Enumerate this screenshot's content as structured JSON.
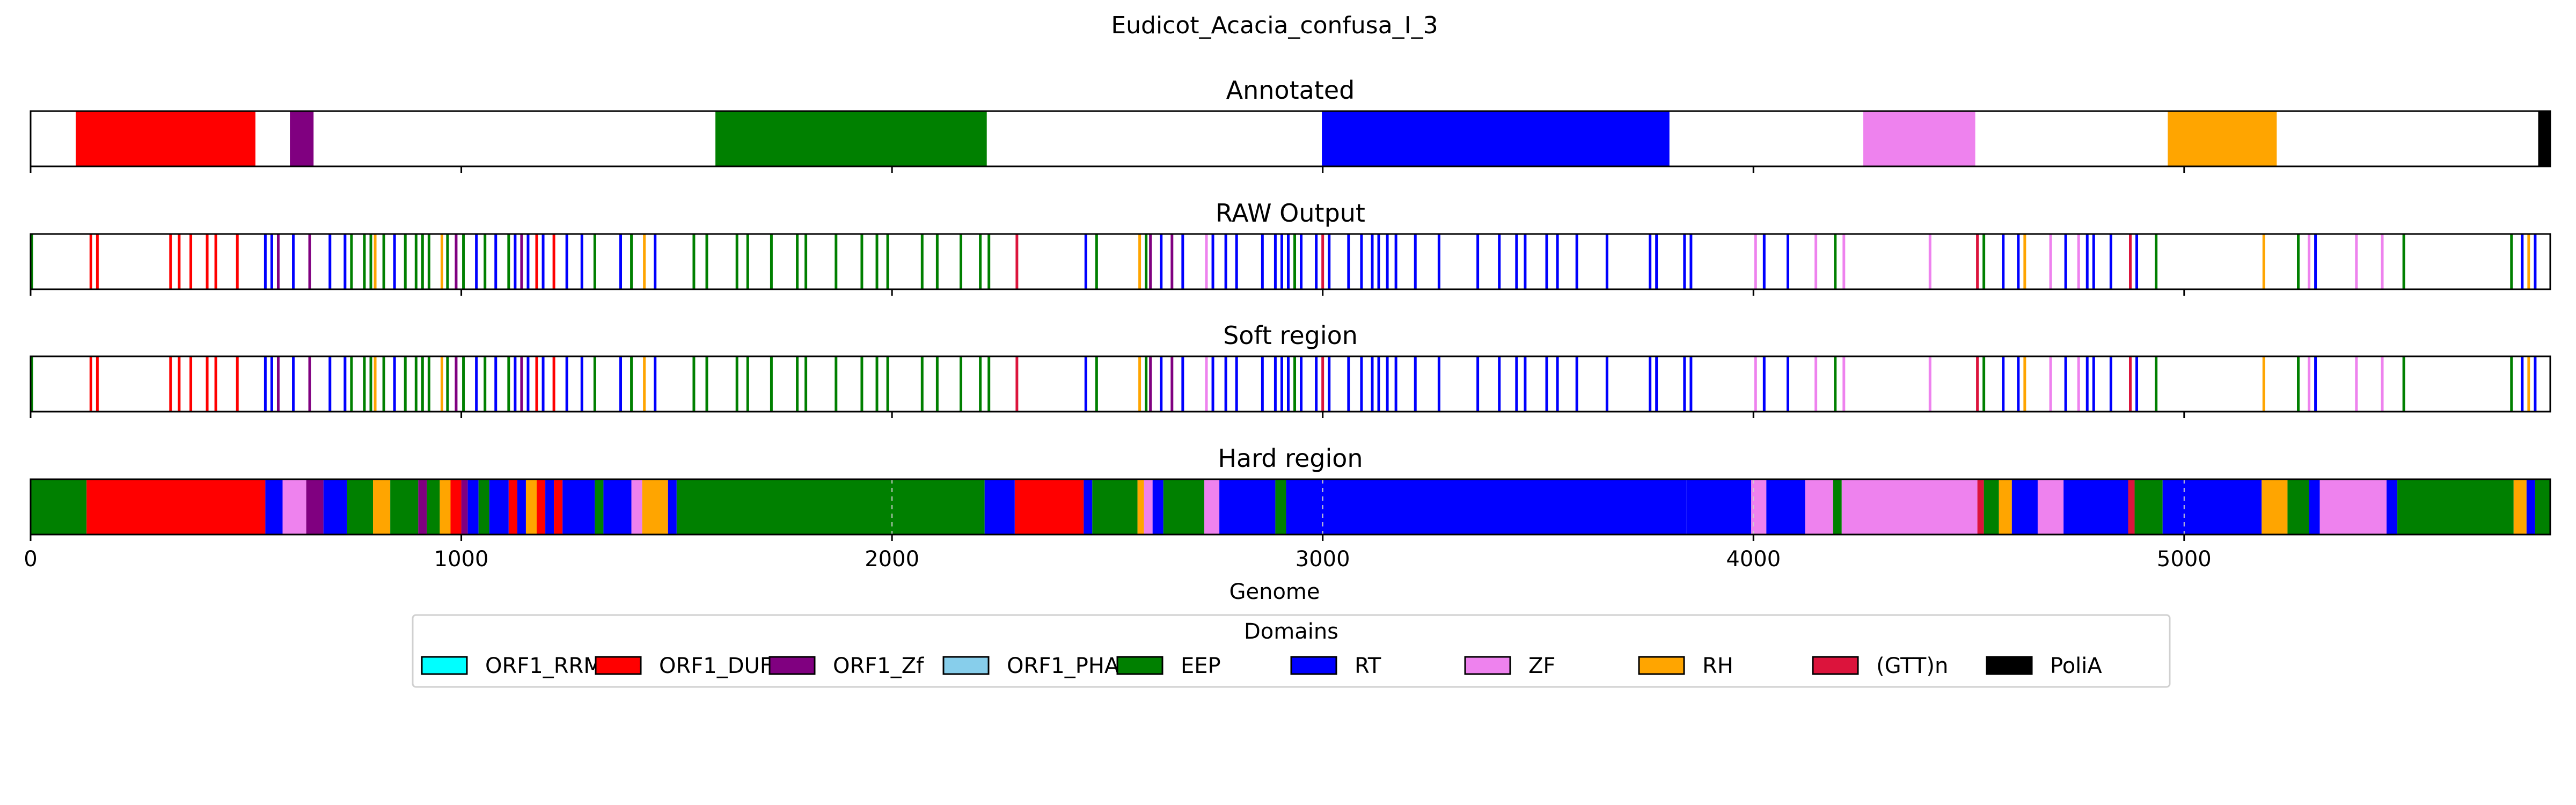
{
  "chart_data": {
    "type": "genome-track",
    "title": "Eudicot_Acacia_confusa_I_3",
    "xlabel": "Genome",
    "xlim": [
      0,
      5850
    ],
    "xticks": [
      0,
      1000,
      2000,
      3000,
      4000,
      5000
    ],
    "dashed_guides_hard_region": [
      2000,
      3000,
      4000,
      5000
    ],
    "legend": {
      "title": "Domains",
      "placement": "bottom-center",
      "entries": [
        {
          "name": "ORF1_RRM",
          "color": "#00ffff"
        },
        {
          "name": "ORF1_DUF",
          "color": "#ff0000"
        },
        {
          "name": "ORF1_Zf",
          "color": "#800080"
        },
        {
          "name": "ORF1_PHA",
          "color": "#87ceeb"
        },
        {
          "name": "EEP",
          "color": "#008000"
        },
        {
          "name": "RT",
          "color": "#0000ff"
        },
        {
          "name": "ZF",
          "color": "#ee82ee"
        },
        {
          "name": "RH",
          "color": "#ffa500"
        },
        {
          "name": "(GTT)n",
          "color": "#dc143c"
        },
        {
          "name": "PoliA",
          "color": "#000000"
        }
      ]
    },
    "panels": [
      {
        "title": "Annotated",
        "kind": "blocks",
        "segments": [
          {
            "domain": "ORF1_DUF",
            "start": 105,
            "end": 522
          },
          {
            "domain": "ORF1_Zf",
            "start": 602,
            "end": 657
          },
          {
            "domain": "EEP",
            "start": 1590,
            "end": 2220
          },
          {
            "domain": "RT",
            "start": 2998,
            "end": 3805
          },
          {
            "domain": "ZF",
            "start": 4255,
            "end": 4515
          },
          {
            "domain": "RH",
            "start": 4962,
            "end": 5215
          },
          {
            "domain": "PoliA",
            "start": 5822,
            "end": 5850
          }
        ]
      },
      {
        "title": "RAW Output",
        "kind": "lines",
        "marks": [
          {
            "domain": "EEP",
            "pos": 3
          },
          {
            "domain": "ORF1_DUF",
            "pos": 140
          },
          {
            "domain": "ORF1_DUF",
            "pos": 155
          },
          {
            "domain": "ORF1_DUF",
            "pos": 325
          },
          {
            "domain": "ORF1_DUF",
            "pos": 345
          },
          {
            "domain": "ORF1_DUF",
            "pos": 372
          },
          {
            "domain": "ORF1_DUF",
            "pos": 410
          },
          {
            "domain": "ORF1_DUF",
            "pos": 430
          },
          {
            "domain": "ORF1_DUF",
            "pos": 480
          },
          {
            "domain": "RT",
            "pos": 545
          },
          {
            "domain": "RT",
            "pos": 560
          },
          {
            "domain": "ORF1_Zf",
            "pos": 575
          },
          {
            "domain": "RT",
            "pos": 610
          },
          {
            "domain": "ORF1_Zf",
            "pos": 648
          },
          {
            "domain": "RT",
            "pos": 695
          },
          {
            "domain": "RT",
            "pos": 730
          },
          {
            "domain": "EEP",
            "pos": 745
          },
          {
            "domain": "EEP",
            "pos": 775
          },
          {
            "domain": "EEP",
            "pos": 790
          },
          {
            "domain": "RH",
            "pos": 800
          },
          {
            "domain": "EEP",
            "pos": 820
          },
          {
            "domain": "RT",
            "pos": 845
          },
          {
            "domain": "EEP",
            "pos": 870
          },
          {
            "domain": "EEP",
            "pos": 895
          },
          {
            "domain": "EEP",
            "pos": 910
          },
          {
            "domain": "EEP",
            "pos": 925
          },
          {
            "domain": "RH",
            "pos": 955
          },
          {
            "domain": "EEP",
            "pos": 968
          },
          {
            "domain": "ORF1_Zf",
            "pos": 988
          },
          {
            "domain": "EEP",
            "pos": 1005
          },
          {
            "domain": "RT",
            "pos": 1035
          },
          {
            "domain": "EEP",
            "pos": 1055
          },
          {
            "domain": "RT",
            "pos": 1080
          },
          {
            "domain": "EEP",
            "pos": 1110
          },
          {
            "domain": "RT",
            "pos": 1125
          },
          {
            "domain": "ORF1_Zf",
            "pos": 1140
          },
          {
            "domain": "RT",
            "pos": 1155
          },
          {
            "domain": "ORF1_DUF",
            "pos": 1175
          },
          {
            "domain": "RT",
            "pos": 1190
          },
          {
            "domain": "ORF1_DUF",
            "pos": 1215
          },
          {
            "domain": "RT",
            "pos": 1245
          },
          {
            "domain": "RT",
            "pos": 1280
          },
          {
            "domain": "EEP",
            "pos": 1310
          },
          {
            "domain": "RT",
            "pos": 1370
          },
          {
            "domain": "EEP",
            "pos": 1395
          },
          {
            "domain": "RH",
            "pos": 1425
          },
          {
            "domain": "RT",
            "pos": 1450
          },
          {
            "domain": "EEP",
            "pos": 1540
          },
          {
            "domain": "EEP",
            "pos": 1570
          },
          {
            "domain": "EEP",
            "pos": 1640
          },
          {
            "domain": "EEP",
            "pos": 1665
          },
          {
            "domain": "EEP",
            "pos": 1720
          },
          {
            "domain": "EEP",
            "pos": 1780
          },
          {
            "domain": "EEP",
            "pos": 1800
          },
          {
            "domain": "EEP",
            "pos": 1870
          },
          {
            "domain": "EEP",
            "pos": 1930
          },
          {
            "domain": "EEP",
            "pos": 1965
          },
          {
            "domain": "EEP",
            "pos": 1990
          },
          {
            "domain": "EEP",
            "pos": 2070
          },
          {
            "domain": "EEP",
            "pos": 2105
          },
          {
            "domain": "EEP",
            "pos": 2160
          },
          {
            "domain": "EEP",
            "pos": 2205
          },
          {
            "domain": "EEP",
            "pos": 2225
          },
          {
            "domain": "(GTT)n",
            "pos": 2290
          },
          {
            "domain": "RT",
            "pos": 2450
          },
          {
            "domain": "EEP",
            "pos": 2475
          },
          {
            "domain": "RH",
            "pos": 2575
          },
          {
            "domain": "EEP",
            "pos": 2590
          },
          {
            "domain": "ORF1_Zf",
            "pos": 2600
          },
          {
            "domain": "RT",
            "pos": 2625
          },
          {
            "domain": "ORF1_Zf",
            "pos": 2650
          },
          {
            "domain": "RT",
            "pos": 2675
          },
          {
            "domain": "ZF",
            "pos": 2730
          },
          {
            "domain": "RT",
            "pos": 2745
          },
          {
            "domain": "RT",
            "pos": 2775
          },
          {
            "domain": "RT",
            "pos": 2800
          },
          {
            "domain": "RT",
            "pos": 2860
          },
          {
            "domain": "RT",
            "pos": 2890
          },
          {
            "domain": "RT",
            "pos": 2905
          },
          {
            "domain": "RT",
            "pos": 2920
          },
          {
            "domain": "EEP",
            "pos": 2935
          },
          {
            "domain": "RT",
            "pos": 2950
          },
          {
            "domain": "RT",
            "pos": 2985
          },
          {
            "domain": "(GTT)n",
            "pos": 3000
          },
          {
            "domain": "RT",
            "pos": 3015
          },
          {
            "domain": "RT",
            "pos": 3060
          },
          {
            "domain": "RT",
            "pos": 3090
          },
          {
            "domain": "RT",
            "pos": 3115
          },
          {
            "domain": "RT",
            "pos": 3130
          },
          {
            "domain": "RT",
            "pos": 3150
          },
          {
            "domain": "RT",
            "pos": 3170
          },
          {
            "domain": "RT",
            "pos": 3215
          },
          {
            "domain": "RT",
            "pos": 3270
          },
          {
            "domain": "RT",
            "pos": 3360
          },
          {
            "domain": "RT",
            "pos": 3410
          },
          {
            "domain": "RT",
            "pos": 3450
          },
          {
            "domain": "RT",
            "pos": 3470
          },
          {
            "domain": "RT",
            "pos": 3520
          },
          {
            "domain": "RT",
            "pos": 3545
          },
          {
            "domain": "RT",
            "pos": 3590
          },
          {
            "domain": "RT",
            "pos": 3660
          },
          {
            "domain": "RT",
            "pos": 3760
          },
          {
            "domain": "RT",
            "pos": 3775
          },
          {
            "domain": "RT",
            "pos": 3840
          },
          {
            "domain": "RT",
            "pos": 3855
          },
          {
            "domain": "ZF",
            "pos": 4005
          },
          {
            "domain": "RT",
            "pos": 4025
          },
          {
            "domain": "RT",
            "pos": 4080
          },
          {
            "domain": "ZF",
            "pos": 4145
          },
          {
            "domain": "EEP",
            "pos": 4190
          },
          {
            "domain": "ZF",
            "pos": 4210
          },
          {
            "domain": "ZF",
            "pos": 4410
          },
          {
            "domain": "(GTT)n",
            "pos": 4520
          },
          {
            "domain": "EEP",
            "pos": 4535
          },
          {
            "domain": "RT",
            "pos": 4580
          },
          {
            "domain": "RT",
            "pos": 4615
          },
          {
            "domain": "RH",
            "pos": 4630
          },
          {
            "domain": "ZF",
            "pos": 4690
          },
          {
            "domain": "RT",
            "pos": 4725
          },
          {
            "domain": "ZF",
            "pos": 4755
          },
          {
            "domain": "RT",
            "pos": 4775
          },
          {
            "domain": "RT",
            "pos": 4790
          },
          {
            "domain": "RT",
            "pos": 4830
          },
          {
            "domain": "(GTT)n",
            "pos": 4875
          },
          {
            "domain": "RT",
            "pos": 4890
          },
          {
            "domain": "EEP",
            "pos": 4935
          },
          {
            "domain": "RH",
            "pos": 5185
          },
          {
            "domain": "EEP",
            "pos": 5265
          },
          {
            "domain": "ZF",
            "pos": 5290
          },
          {
            "domain": "RT",
            "pos": 5305
          },
          {
            "domain": "ZF",
            "pos": 5400
          },
          {
            "domain": "ZF",
            "pos": 5460
          },
          {
            "domain": "EEP",
            "pos": 5510
          },
          {
            "domain": "EEP",
            "pos": 5760
          },
          {
            "domain": "RT",
            "pos": 5785
          },
          {
            "domain": "RH",
            "pos": 5800
          },
          {
            "domain": "RT",
            "pos": 5815
          }
        ]
      },
      {
        "title": "Soft region",
        "kind": "lines",
        "same_marks_as": "RAW Output"
      },
      {
        "title": "Hard region",
        "kind": "blocks",
        "segments": [
          {
            "domain": "EEP",
            "start": 0,
            "end": 130
          },
          {
            "domain": "ORF1_DUF",
            "start": 130,
            "end": 545
          },
          {
            "domain": "RT",
            "start": 545,
            "end": 585
          },
          {
            "domain": "ZF",
            "start": 585,
            "end": 640
          },
          {
            "domain": "ORF1_Zf",
            "start": 640,
            "end": 680
          },
          {
            "domain": "RT",
            "start": 680,
            "end": 735
          },
          {
            "domain": "EEP",
            "start": 735,
            "end": 795
          },
          {
            "domain": "RH",
            "start": 795,
            "end": 835
          },
          {
            "domain": "EEP",
            "start": 835,
            "end": 900
          },
          {
            "domain": "ORF1_Zf",
            "start": 900,
            "end": 920
          },
          {
            "domain": "EEP",
            "start": 920,
            "end": 950
          },
          {
            "domain": "RH",
            "start": 950,
            "end": 975
          },
          {
            "domain": "ORF1_DUF",
            "start": 975,
            "end": 1000
          },
          {
            "domain": "ORF1_Zf",
            "start": 1000,
            "end": 1015
          },
          {
            "domain": "RT",
            "start": 1015,
            "end": 1040
          },
          {
            "domain": "EEP",
            "start": 1040,
            "end": 1065
          },
          {
            "domain": "RT",
            "start": 1065,
            "end": 1110
          },
          {
            "domain": "ORF1_DUF",
            "start": 1110,
            "end": 1130
          },
          {
            "domain": "RT",
            "start": 1130,
            "end": 1150
          },
          {
            "domain": "RH",
            "start": 1150,
            "end": 1175
          },
          {
            "domain": "ORF1_DUF",
            "start": 1175,
            "end": 1195
          },
          {
            "domain": "RT",
            "start": 1195,
            "end": 1215
          },
          {
            "domain": "ORF1_DUF",
            "start": 1215,
            "end": 1235
          },
          {
            "domain": "RT",
            "start": 1235,
            "end": 1310
          },
          {
            "domain": "EEP",
            "start": 1310,
            "end": 1330
          },
          {
            "domain": "RT",
            "start": 1330,
            "end": 1395
          },
          {
            "domain": "ZF",
            "start": 1395,
            "end": 1420
          },
          {
            "domain": "RH",
            "start": 1420,
            "end": 1480
          },
          {
            "domain": "RT",
            "start": 1480,
            "end": 1500
          },
          {
            "domain": "EEP",
            "start": 1500,
            "end": 2215
          },
          {
            "domain": "RT",
            "start": 2215,
            "end": 2285
          },
          {
            "domain": "ORF1_DUF",
            "start": 2285,
            "end": 2445
          },
          {
            "domain": "RT",
            "start": 2445,
            "end": 2465
          },
          {
            "domain": "EEP",
            "start": 2465,
            "end": 2570
          },
          {
            "domain": "RH",
            "start": 2570,
            "end": 2585
          },
          {
            "domain": "ZF",
            "start": 2585,
            "end": 2605
          },
          {
            "domain": "RT",
            "start": 2605,
            "end": 2630
          },
          {
            "domain": "EEP",
            "start": 2630,
            "end": 2725
          },
          {
            "domain": "ZF",
            "start": 2725,
            "end": 2760
          },
          {
            "domain": "RT",
            "start": 2760,
            "end": 2890
          },
          {
            "domain": "EEP",
            "start": 2890,
            "end": 2915
          },
          {
            "domain": "RT",
            "start": 2915,
            "end": 3845
          },
          {
            "domain": "RT",
            "start": 3845,
            "end": 3995
          },
          {
            "domain": "ZF",
            "start": 3995,
            "end": 4030
          },
          {
            "domain": "RT",
            "start": 4030,
            "end": 4120
          },
          {
            "domain": "ZF",
            "start": 4120,
            "end": 4185
          },
          {
            "domain": "EEP",
            "start": 4185,
            "end": 4205
          },
          {
            "domain": "ZF",
            "start": 4205,
            "end": 4520
          },
          {
            "domain": "(GTT)n",
            "start": 4520,
            "end": 4535
          },
          {
            "domain": "EEP",
            "start": 4535,
            "end": 4570
          },
          {
            "domain": "RH",
            "start": 4570,
            "end": 4600
          },
          {
            "domain": "RT",
            "start": 4600,
            "end": 4660
          },
          {
            "domain": "ZF",
            "start": 4660,
            "end": 4720
          },
          {
            "domain": "RT",
            "start": 4720,
            "end": 4870
          },
          {
            "domain": "(GTT)n",
            "start": 4870,
            "end": 4885
          },
          {
            "domain": "EEP",
            "start": 4885,
            "end": 4950
          },
          {
            "domain": "RT",
            "start": 4950,
            "end": 5180
          },
          {
            "domain": "RH",
            "start": 5180,
            "end": 5240
          },
          {
            "domain": "EEP",
            "start": 5240,
            "end": 5290
          },
          {
            "domain": "RT",
            "start": 5290,
            "end": 5315
          },
          {
            "domain": "ZF",
            "start": 5315,
            "end": 5470
          },
          {
            "domain": "RT",
            "start": 5470,
            "end": 5495
          },
          {
            "domain": "EEP",
            "start": 5495,
            "end": 5765
          },
          {
            "domain": "RH",
            "start": 5765,
            "end": 5795
          },
          {
            "domain": "RT",
            "start": 5795,
            "end": 5815
          },
          {
            "domain": "EEP",
            "start": 5815,
            "end": 5850
          }
        ]
      }
    ]
  }
}
